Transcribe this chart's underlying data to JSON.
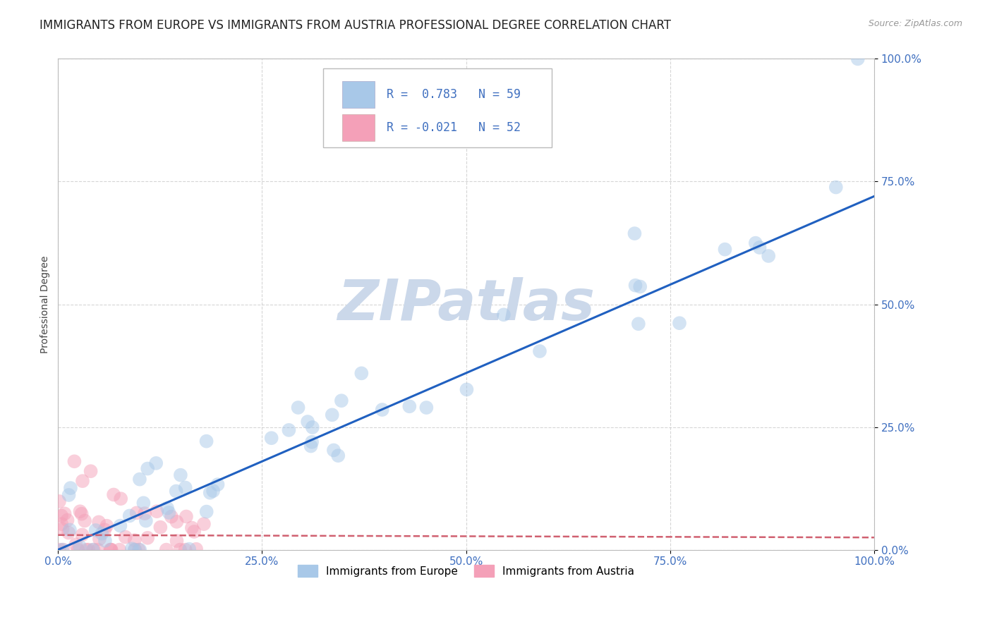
{
  "title": "IMMIGRANTS FROM EUROPE VS IMMIGRANTS FROM AUSTRIA PROFESSIONAL DEGREE CORRELATION CHART",
  "source": "Source: ZipAtlas.com",
  "ylabel_label": "Professional Degree",
  "x_tick_labels": [
    "0.0%",
    "25.0%",
    "50.0%",
    "75.0%",
    "100.0%"
  ],
  "x_tick_vals": [
    0,
    25,
    50,
    75,
    100
  ],
  "y_tick_labels": [
    "0.0%",
    "25.0%",
    "50.0%",
    "75.0%",
    "100.0%"
  ],
  "y_tick_vals": [
    0,
    25,
    50,
    75,
    100
  ],
  "xlim": [
    0,
    100
  ],
  "ylim": [
    0,
    100
  ],
  "blue_color": "#A8C8E8",
  "pink_color": "#F4A0B8",
  "blue_line_color": "#2060C0",
  "pink_line_color": "#D06070",
  "grid_color": "#CCCCCC",
  "watermark_color": "#CBD8EA",
  "background_color": "#FFFFFF",
  "tick_color": "#4070C0",
  "scatter_size": 200,
  "scatter_alpha": 0.5,
  "title_fontsize": 12,
  "source_fontsize": 9,
  "axis_label_fontsize": 10,
  "tick_fontsize": 11,
  "legend_fontsize": 12,
  "blue_slope": 0.72,
  "blue_intercept": 0,
  "pink_slope": -0.005,
  "pink_intercept": 3.0
}
